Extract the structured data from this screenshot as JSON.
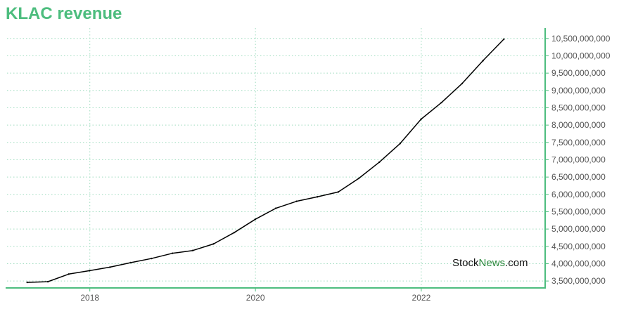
{
  "chart_data": {
    "type": "line",
    "title": "KLAC revenue",
    "xlabel": "",
    "ylabel": "",
    "x_ticks": [
      "2018",
      "2020",
      "2022"
    ],
    "y_ticks": [
      "3,500,000,000",
      "4,000,000,000",
      "4,500,000,000",
      "5,000,000,000",
      "5,500,000,000",
      "6,000,000,000",
      "6,500,000,000",
      "7,000,000,000",
      "7,500,000,000",
      "8,000,000,000",
      "8,500,000,000",
      "9,000,000,000",
      "9,500,000,000",
      "10,000,000,000",
      "10,500,000,000"
    ],
    "ylim": [
      3300000000,
      10800000000
    ],
    "xlim": [
      "2017-01-01",
      "2023-07-01"
    ],
    "grid": true,
    "series": [
      {
        "color": "#000000",
        "points": [
          {
            "x": "2017-03-31",
            "y": 3460000000
          },
          {
            "x": "2017-06-30",
            "y": 3480000000
          },
          {
            "x": "2017-09-30",
            "y": 3700000000
          },
          {
            "x": "2017-12-31",
            "y": 3800000000
          },
          {
            "x": "2018-03-31",
            "y": 3900000000
          },
          {
            "x": "2018-06-30",
            "y": 4030000000
          },
          {
            "x": "2018-09-30",
            "y": 4150000000
          },
          {
            "x": "2018-12-31",
            "y": 4300000000
          },
          {
            "x": "2019-03-31",
            "y": 4380000000
          },
          {
            "x": "2019-06-30",
            "y": 4570000000
          },
          {
            "x": "2019-09-30",
            "y": 4900000000
          },
          {
            "x": "2019-12-31",
            "y": 5280000000
          },
          {
            "x": "2020-03-31",
            "y": 5600000000
          },
          {
            "x": "2020-06-30",
            "y": 5800000000
          },
          {
            "x": "2020-09-30",
            "y": 5930000000
          },
          {
            "x": "2020-12-31",
            "y": 6070000000
          },
          {
            "x": "2021-03-31",
            "y": 6460000000
          },
          {
            "x": "2021-06-30",
            "y": 6930000000
          },
          {
            "x": "2021-09-30",
            "y": 7470000000
          },
          {
            "x": "2021-12-31",
            "y": 8170000000
          },
          {
            "x": "2022-03-31",
            "y": 8650000000
          },
          {
            "x": "2022-06-30",
            "y": 9200000000
          },
          {
            "x": "2022-09-30",
            "y": 9860000000
          },
          {
            "x": "2022-12-31",
            "y": 10480000000
          }
        ]
      }
    ]
  },
  "colors": {
    "accent": "#4dbd7e",
    "grid": "#9fdcbf",
    "line": "#000000",
    "watermark_accent": "#2d8a3e"
  },
  "watermark": {
    "prefix": "Stock",
    "accent": "News",
    "suffix": ".com"
  }
}
